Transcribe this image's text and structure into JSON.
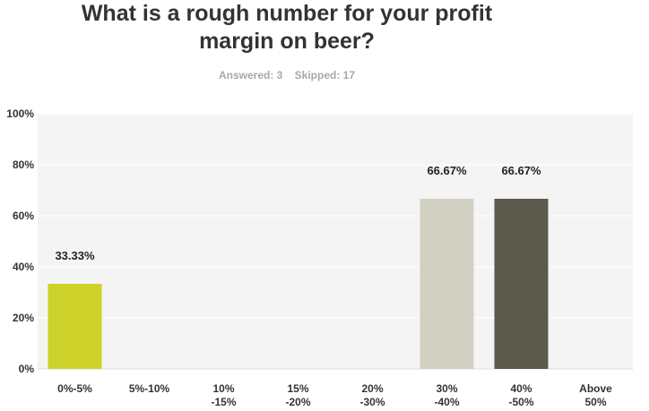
{
  "question": {
    "title_line1": "What is a rough number for your profit",
    "title_line2": "margin on beer?",
    "answered_label": "Answered: 3",
    "skipped_label": "Skipped: 17"
  },
  "chart_data": {
    "type": "bar",
    "categories": [
      [
        "0%-5%"
      ],
      [
        "5%-10%"
      ],
      [
        "10%",
        "-15%"
      ],
      [
        "15%",
        "-20%"
      ],
      [
        "20%",
        "-30%"
      ],
      [
        "30%",
        "-40%"
      ],
      [
        "40%",
        "-50%"
      ],
      [
        "Above",
        "50%"
      ]
    ],
    "values": [
      33.33,
      0,
      0,
      0,
      0,
      66.67,
      66.67,
      0
    ],
    "data_labels": [
      "33.33%",
      "",
      "",
      "",
      "",
      "66.67%",
      "66.67%",
      ""
    ],
    "colors": [
      "#cdd22a",
      "#cdd22a",
      "#cdd22a",
      "#cdd22a",
      "#cdd22a",
      "#d2d0c3",
      "#5c5a4d",
      "#cdd22a"
    ],
    "yticks": [
      "0%",
      "20%",
      "40%",
      "60%",
      "80%",
      "100%"
    ],
    "ylim": [
      0,
      100
    ],
    "plot_background": "#f4f4f4",
    "grid": true,
    "gridline_color": "#ffffff"
  }
}
